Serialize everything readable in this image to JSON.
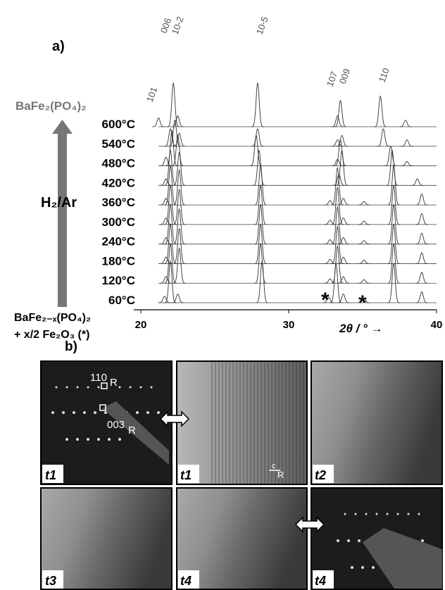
{
  "chart_data": {
    "type": "stacked-pattern",
    "panel_label": "a)",
    "peak_labels": [
      "101",
      "006",
      "10-2",
      "10-5",
      "107",
      "009",
      "110"
    ],
    "product_label": "BaFe₂(PO₄)₂",
    "atmosphere_label": "H₂/Ar",
    "start_label_line1": "BaFe₂₋ₓ(PO₄)₂",
    "start_label_line2": "+ x/2 Fe₂O₃ (*)",
    "impurity_markers": [
      "*",
      "*"
    ],
    "x_label": "2θ / °  →",
    "xlim": [
      20,
      40
    ],
    "xticks": [
      20,
      30,
      40
    ],
    "series": [
      {
        "name": "600°C",
        "x": [
          21.2,
          22.2,
          22.5,
          27.9,
          33.3,
          33.5,
          36.2,
          37.9
        ],
        "values": [
          20,
          100,
          25,
          100,
          25,
          60,
          70,
          15
        ]
      },
      {
        "name": "540°C",
        "x": [
          22.0,
          22.3,
          22.6,
          27.9,
          33.3,
          33.6,
          36.4,
          38.0
        ],
        "values": [
          40,
          60,
          30,
          40,
          15,
          25,
          40,
          15
        ]
      },
      {
        "name": "480°C",
        "x": [
          21.7,
          22.1,
          22.5,
          27.8,
          33.3,
          33.5,
          36.9,
          38.0
        ],
        "values": [
          20,
          80,
          70,
          70,
          15,
          60,
          45,
          10
        ]
      },
      {
        "name": "420°C",
        "x": [
          21.7,
          22.0,
          22.6,
          28.0,
          33.4,
          33.6,
          37.0,
          38.7
        ],
        "values": [
          15,
          80,
          75,
          80,
          25,
          80,
          80,
          15
        ]
      },
      {
        "name": "360°C",
        "x": [
          21.7,
          22.0,
          22.6,
          28.1,
          32.8,
          33.3,
          33.7,
          35.1,
          37.1,
          39.0
        ],
        "values": [
          15,
          90,
          80,
          90,
          10,
          85,
          15,
          8,
          90,
          25
        ]
      },
      {
        "name": "300°C",
        "x": [
          21.7,
          22.0,
          22.6,
          28.1,
          32.8,
          33.3,
          33.7,
          35.1,
          37.1,
          39.0
        ],
        "values": [
          15,
          90,
          80,
          90,
          10,
          85,
          15,
          8,
          90,
          25
        ]
      },
      {
        "name": "240°C",
        "x": [
          21.7,
          22.0,
          22.6,
          28.1,
          32.8,
          33.3,
          33.7,
          35.1,
          37.1,
          39.0
        ],
        "values": [
          15,
          90,
          80,
          90,
          10,
          85,
          15,
          8,
          90,
          25
        ]
      },
      {
        "name": "180°C",
        "x": [
          21.7,
          22.0,
          22.6,
          28.1,
          32.8,
          33.3,
          33.7,
          35.1,
          37.1,
          39.0
        ],
        "values": [
          15,
          90,
          80,
          90,
          10,
          85,
          15,
          8,
          90,
          25
        ]
      },
      {
        "name": "120°C",
        "x": [
          21.7,
          22.0,
          22.6,
          28.1,
          32.8,
          33.3,
          33.7,
          35.1,
          37.1,
          39.0
        ],
        "values": [
          15,
          90,
          80,
          90,
          10,
          85,
          15,
          8,
          90,
          25
        ]
      },
      {
        "name": "60°C",
        "x": [
          21.6,
          22.0,
          22.5,
          28.2,
          32.7,
          33.2,
          33.7,
          35.1,
          37.1,
          39.0
        ],
        "values": [
          15,
          95,
          20,
          95,
          12,
          90,
          20,
          10,
          90,
          25
        ]
      }
    ]
  },
  "panel_b": {
    "label": "b)",
    "panels": [
      {
        "label": "t1",
        "annotations": [
          "110",
          "R",
          "003",
          "R"
        ]
      },
      {
        "label": "t1",
        "annotations": [
          "c",
          "R"
        ]
      },
      {
        "label": "t2"
      },
      {
        "label": "t3"
      },
      {
        "label": "t4"
      },
      {
        "label": "t4"
      }
    ]
  }
}
